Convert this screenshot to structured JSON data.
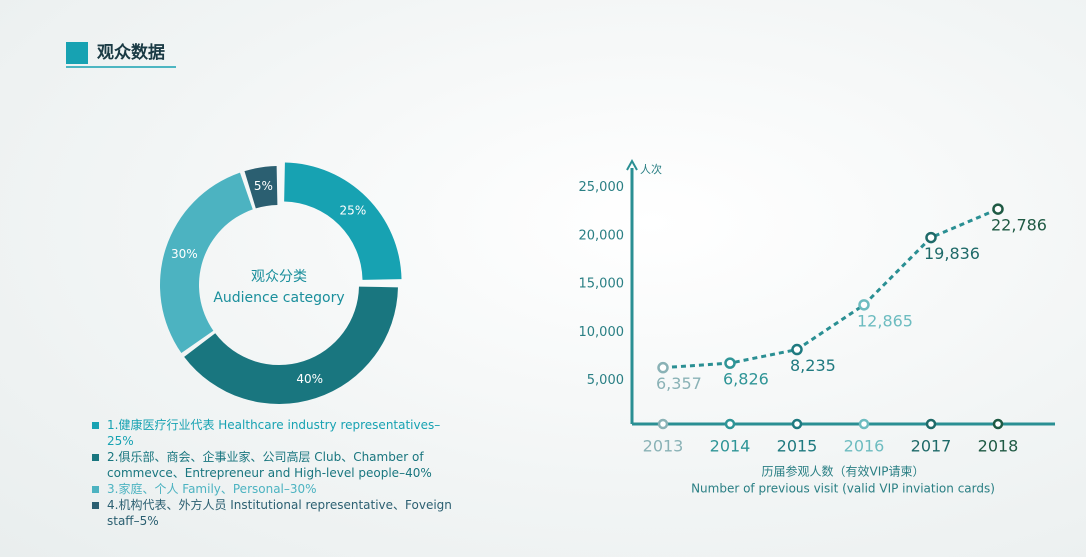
{
  "header": {
    "title": "观众数据"
  },
  "chart_data": [
    {
      "type": "donut",
      "center_text": "观众分类",
      "center_subtext": "Audience category",
      "categories": [
        "1.健康医疗行业代表 Healthcare industry representatives–25%",
        "2.俱乐部、商会、企事业家、公司高层 Club、Chamber of commevce、Entrepreneur and High-level people–40%",
        "3.家庭、个人 Family、Personal–30%",
        "4.机构代表、外方人员 Institutional representative、Foveign staff–5%"
      ],
      "values": [
        25,
        40,
        30,
        5
      ],
      "value_labels": [
        "25%",
        "40%",
        "30%",
        "5%"
      ],
      "colors": [
        "#17a2b2",
        "#19767f",
        "#4cb3c1",
        "#2b5f71"
      ]
    },
    {
      "type": "line",
      "ylabel": "人次",
      "xlabel": "历届参观人数（有效VIP请柬）",
      "xlabel_sub": "Number of previous visit (valid VIP inviation cards)",
      "categories": [
        "2013",
        "2014",
        "2015",
        "2016",
        "2017",
        "2018"
      ],
      "series": [
        {
          "color": "#2a8f93",
          "values": [
            6357,
            6826,
            8235,
            12865,
            19836,
            22786
          ],
          "value_labels": [
            "6,357",
            "6,826",
            "8,235",
            "12,865",
            "19,836",
            "22,786"
          ],
          "point_colors": [
            "#8ab2b6",
            "#2f9597",
            "#1f7a80",
            "#6dbcc0",
            "#1f6a69",
            "#1f5a44"
          ]
        }
      ],
      "ylim": [
        0,
        27500
      ],
      "yticks": [
        {
          "value": 5000,
          "label": "5,000"
        },
        {
          "value": 10000,
          "label": "10,000"
        },
        {
          "value": 15000,
          "label": "15,000"
        },
        {
          "value": 20000,
          "label": "20,000"
        },
        {
          "value": 25000,
          "label": "25,000"
        }
      ]
    }
  ]
}
